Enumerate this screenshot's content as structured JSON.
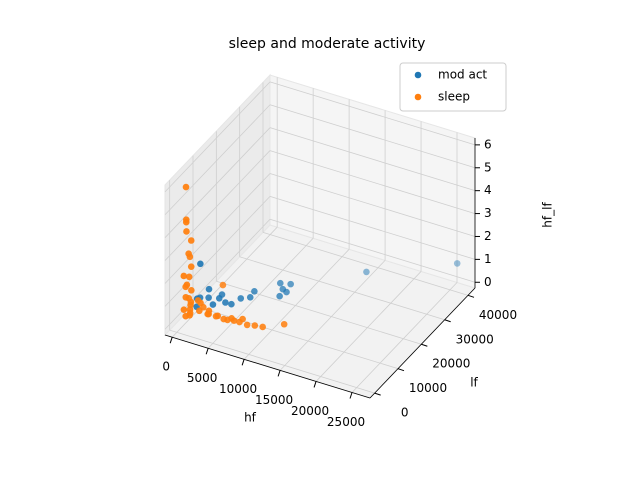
{
  "chart_data": {
    "type": "scatter3d",
    "title": "sleep and moderate activity",
    "xlabel": "hf",
    "ylabel": "lf",
    "zlabel": "hf_lf",
    "xlim": [
      -1000,
      27500
    ],
    "ylim": [
      -2000,
      43000
    ],
    "zlim": [
      -0.25,
      6.3
    ],
    "xticks": [
      0,
      5000,
      10000,
      15000,
      20000,
      25000
    ],
    "yticks": [
      0,
      10000,
      20000,
      30000,
      40000
    ],
    "zticks": [
      0,
      1,
      2,
      3,
      4,
      5,
      6
    ],
    "grid": true,
    "legend": "upper right",
    "series": [
      {
        "name": "mod act",
        "color": "#1f77b4",
        "x": [
          8720,
          7840,
          9050,
          9420,
          9100,
          5890,
          6060,
          5150,
          2740,
          3920,
          1620,
          1960,
          710,
          2790,
          15000,
          26000,
          1200,
          800,
          2200,
          4500,
          3300
        ],
        "y": [
          18520,
          20160,
          20870,
          17950,
          16000,
          15060,
          12770,
          11510,
          10900,
          8720,
          8620,
          4030,
          7770,
          6860,
          35000,
          40000,
          5000,
          6000,
          7000,
          9500,
          8000
        ],
        "z": [
          0.5,
          0.5,
          0.5,
          0.5,
          0.5,
          0.5,
          0.5,
          0.5,
          0.5,
          0.5,
          0.5,
          2.5,
          0.5,
          0.5,
          0.1,
          1,
          0.8,
          0.3,
          1.1,
          0.4,
          0.7
        ]
      },
      {
        "name": "sleep",
        "color": "#ff7f0e",
        "x": [
          300,
          500,
          200,
          700,
          400,
          600,
          350,
          800,
          250,
          450,
          550,
          150,
          650,
          300,
          500,
          900,
          400,
          200,
          600,
          750,
          350,
          450,
          1500,
          2500,
          3500,
          4500,
          5500,
          6500,
          7500,
          8500,
          9500,
          3000,
          2000,
          4000,
          6000,
          3040,
          12000,
          1000,
          1800,
          2600,
          5000,
          7000
        ],
        "y": [
          3000,
          2500,
          3500,
          4000,
          2800,
          3200,
          4500,
          3700,
          2200,
          3900,
          2600,
          3300,
          4200,
          2900,
          3600,
          3100,
          4800,
          2400,
          3800,
          3400,
          2700,
          4100,
          5000,
          5500,
          6000,
          6200,
          6500,
          6800,
          7000,
          7200,
          7500,
          4500,
          4000,
          5200,
          6000,
          10360,
          9000,
          6000,
          5800,
          5600,
          6300,
          6600
        ],
        "z": [
          5.8,
          4.45,
          3.8,
          3.4,
          4.3,
          2.9,
          2.6,
          2.3,
          2.0,
          1.8,
          1.6,
          1.4,
          1.2,
          1.0,
          0.9,
          0.7,
          0.6,
          0.5,
          0.4,
          0.3,
          0.2,
          0.1,
          0.3,
          0.2,
          0.15,
          0.1,
          0.2,
          0.1,
          0.05,
          0.1,
          0.1,
          0.5,
          0.8,
          0.3,
          0.2,
          1.0,
          0.3,
          0.6,
          0.4,
          0.2,
          0.1,
          0.3
        ]
      }
    ]
  }
}
